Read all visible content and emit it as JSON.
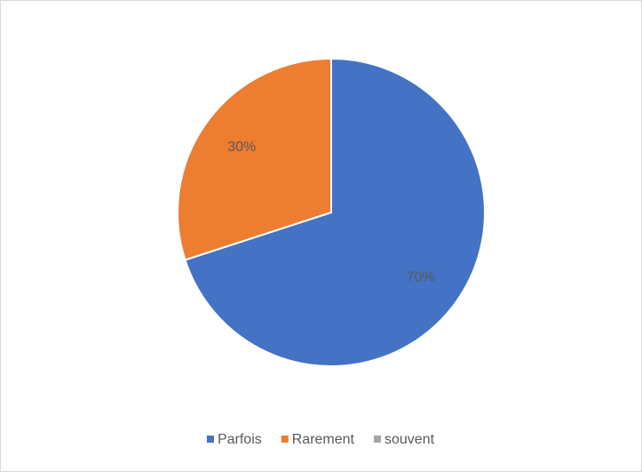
{
  "chart_data": {
    "type": "pie",
    "categories": [
      "Parfois",
      "Rarement",
      "souvent"
    ],
    "values": [
      70,
      30,
      0
    ],
    "value_labels": [
      "70%",
      "30%",
      null
    ],
    "colors": [
      "#4472c4",
      "#ed7d31",
      "#a5a5a5"
    ],
    "legend": "bottom"
  }
}
